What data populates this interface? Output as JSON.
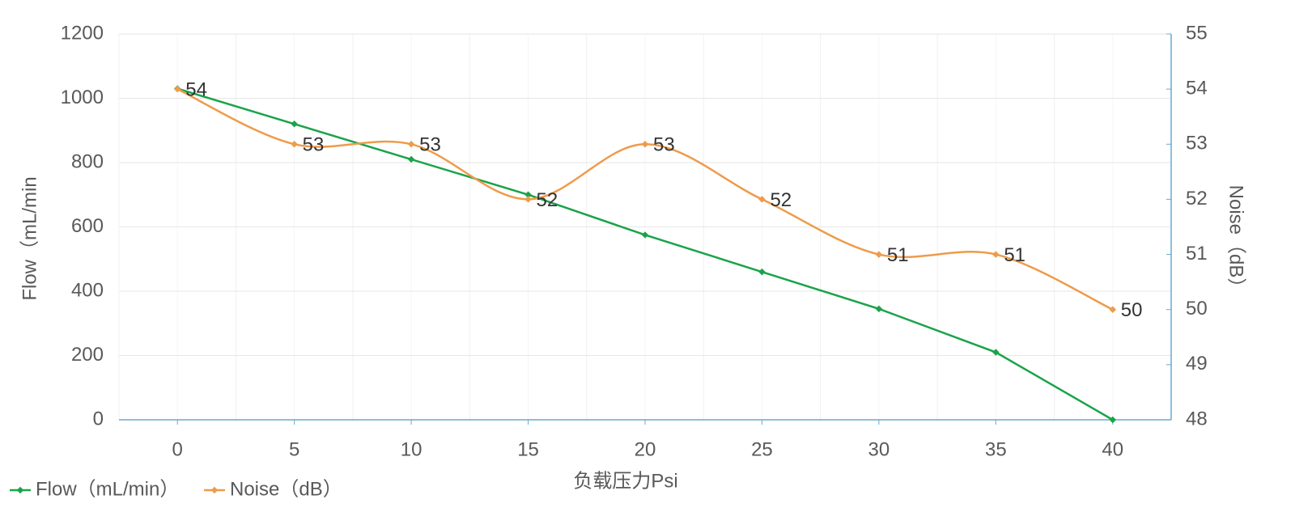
{
  "chart_data": {
    "type": "line",
    "x_label": "负载压力Psi",
    "y_label": "Flow（mL/min",
    "y2_label": "Noise（dB）",
    "categories": [
      "0",
      "5",
      "10",
      "15",
      "20",
      "25",
      "30",
      "35",
      "40"
    ],
    "series": [
      {
        "name": "Flow（mL/min）",
        "color": "#1aa34a",
        "values": [
          1030,
          920,
          810,
          700,
          575,
          460,
          345,
          210,
          0
        ]
      },
      {
        "name": "Noise（dB）",
        "color": "#ee9b4a",
        "axis": "y2",
        "smooth": true,
        "show_values": true,
        "values": [
          54,
          53,
          53,
          52,
          53,
          52,
          51,
          51,
          50
        ]
      }
    ],
    "ylim": [
      0,
      1200
    ],
    "yticks": [
      0,
      200,
      400,
      600,
      800,
      1000,
      1200
    ],
    "y2lim": [
      48,
      55
    ],
    "y2ticks": [
      48,
      49,
      50,
      51,
      52,
      53,
      54,
      55
    ],
    "grid": true,
    "legend": "bottom-left"
  }
}
